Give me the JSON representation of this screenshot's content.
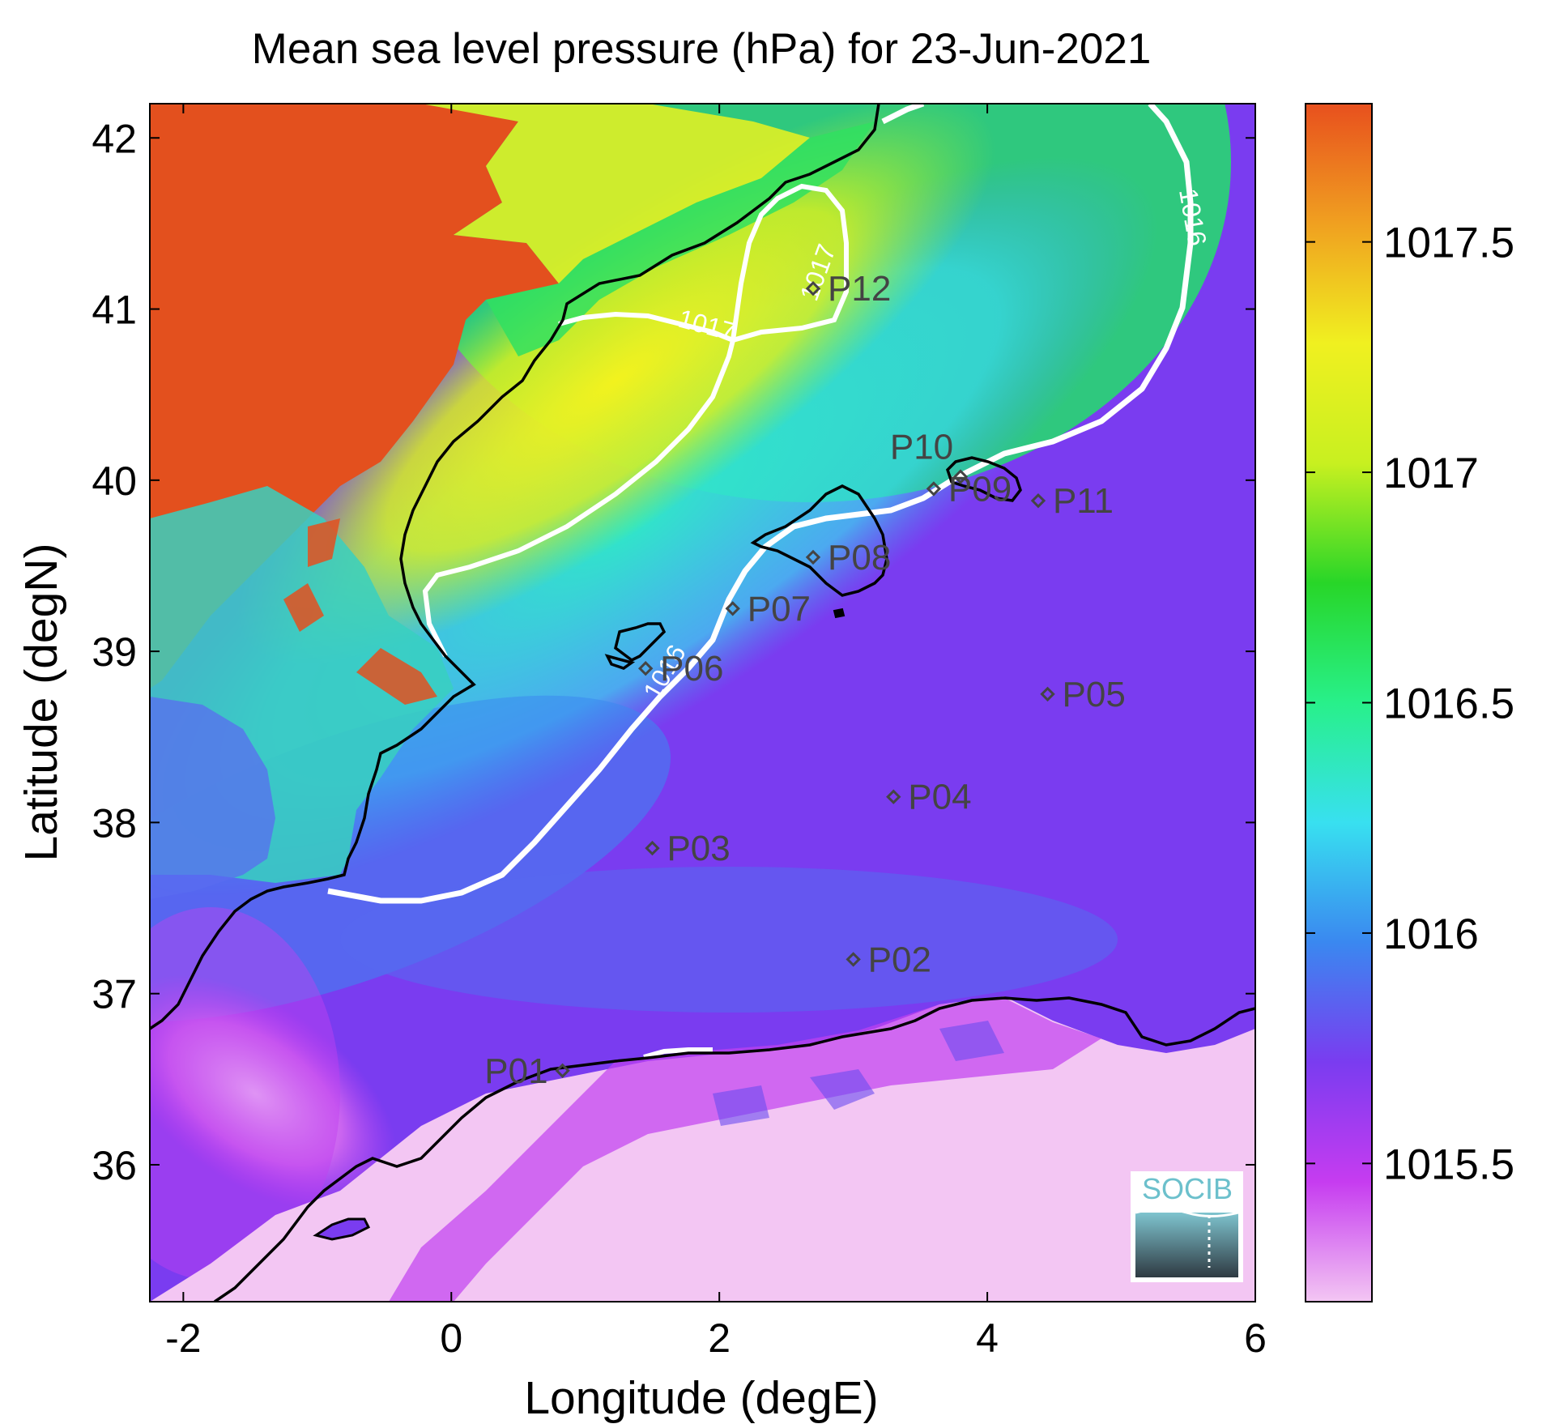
{
  "title": "Mean sea level pressure (hPa) for 23-Jun-2021",
  "xlabel": "Longitude (degE)",
  "ylabel": "Latitude (degN)",
  "xlim": [
    -2.25,
    6.0
  ],
  "ylim": [
    35.2,
    42.2
  ],
  "xticks": [
    -2,
    0,
    2,
    4,
    6
  ],
  "yticks": [
    36,
    37,
    38,
    39,
    40,
    41,
    42
  ],
  "colorbar": {
    "range": [
      1015.2,
      1017.8
    ],
    "ticks": [
      1015.5,
      1016,
      1016.5,
      1017,
      1017.5
    ],
    "tick_labels": [
      "1015.5",
      "1016",
      "1016.5",
      "1017",
      "1017.5"
    ],
    "colormap": [
      "#f3c6f3",
      "#c63cf0",
      "#7a3cf0",
      "#3a88f0",
      "#38e0f0",
      "#28f08a",
      "#28d628",
      "#c8f020",
      "#f0f020",
      "#f0a020",
      "#e8501e"
    ]
  },
  "contours": [
    {
      "label": "1016"
    },
    {
      "label": "1017"
    }
  ],
  "stations": [
    {
      "name": "P01",
      "lon": 0.83,
      "lat": 36.55
    },
    {
      "name": "P02",
      "lon": 3.0,
      "lat": 37.2
    },
    {
      "name": "P03",
      "lon": 1.5,
      "lat": 37.85
    },
    {
      "name": "P04",
      "lon": 3.3,
      "lat": 38.15
    },
    {
      "name": "P05",
      "lon": 4.45,
      "lat": 38.75
    },
    {
      "name": "P06",
      "lon": 1.45,
      "lat": 38.9
    },
    {
      "name": "P07",
      "lon": 2.1,
      "lat": 39.25
    },
    {
      "name": "P08",
      "lon": 2.7,
      "lat": 39.55
    },
    {
      "name": "P09",
      "lon": 3.6,
      "lat": 39.95
    },
    {
      "name": "P10",
      "lon": 3.8,
      "lat": 40.02
    },
    {
      "name": "P11",
      "lon": 4.38,
      "lat": 39.88
    },
    {
      "name": "P12",
      "lon": 2.7,
      "lat": 41.12
    }
  ],
  "logo": {
    "text": "SOCIB"
  }
}
